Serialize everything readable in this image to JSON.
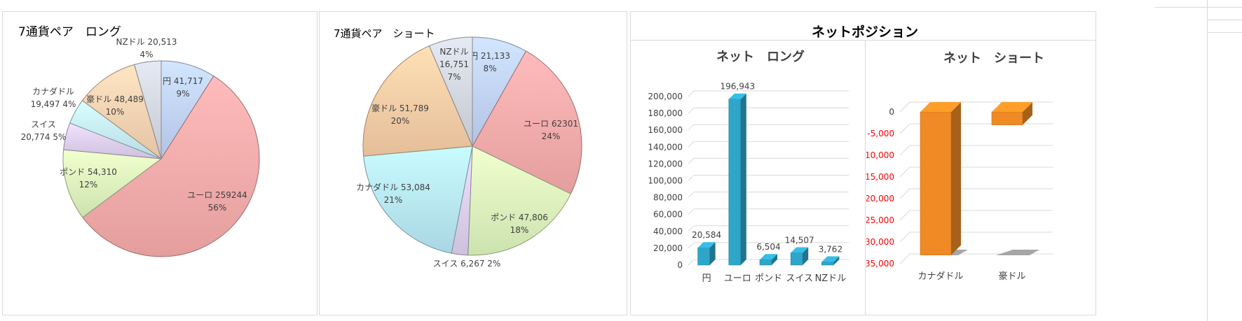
{
  "chart_data": [
    {
      "type": "pie",
      "title": "7通貨ペア　ロング",
      "slices": [
        {
          "name": "円",
          "value": 41717,
          "value_label": "41,717",
          "pct": "9%",
          "color": "#c6d9fd"
        },
        {
          "name": "ユーロ",
          "value": 259244,
          "value_label": "259244",
          "pct": "56%",
          "color": "#fdb0b0"
        },
        {
          "name": "ポンド",
          "value": 54310,
          "value_label": "54,310",
          "pct": "12%",
          "color": "#e3fcc2"
        },
        {
          "name": "スイス",
          "value": 20774,
          "value_label": "20,774",
          "pct": "5%",
          "color": "#e4d6f5"
        },
        {
          "name": "カナダドル",
          "value": 19497,
          "value_label": "19,497",
          "pct": "4%",
          "color": "#ccf3fd"
        },
        {
          "name": "豪ドル",
          "value": 48489,
          "value_label": "48,489",
          "pct": "10%",
          "color": "#fdd9b8"
        },
        {
          "name": "NZドル",
          "value": 20513,
          "value_label": "20,513",
          "pct": "4%",
          "color": "#d9dde6"
        }
      ]
    },
    {
      "type": "pie",
      "title": "7通貨ペア　ショート",
      "slices": [
        {
          "name": "円",
          "value": 21133,
          "value_label": "21,133",
          "pct": "8%",
          "color": "#c6d9fd"
        },
        {
          "name": "ユーロ",
          "value": 62301,
          "value_label": "62301",
          "pct": "24%",
          "color": "#fdb0b0"
        },
        {
          "name": "ポンド",
          "value": 47806,
          "value_label": "47,806",
          "pct": "18%",
          "color": "#e3fcc2"
        },
        {
          "name": "スイス",
          "value": 6267,
          "value_label": "6,267",
          "pct": "2%",
          "color": "#e4d6f5"
        },
        {
          "name": "カナダドル",
          "value": 53084,
          "value_label": "53,084",
          "pct": "21%",
          "color": "#bdeefc"
        },
        {
          "name": "豪ドル",
          "value": 51789,
          "value_label": "51,789",
          "pct": "20%",
          "color": "#fdd3ab"
        },
        {
          "name": "NZドル",
          "value": 16751,
          "value_label": "16,751",
          "pct": "7%",
          "color": "#d9dde6"
        }
      ]
    },
    {
      "type": "bar",
      "title": "ネット　ロング",
      "categories": [
        "円",
        "ユーロ",
        "ポンド",
        "スイス",
        "NZドル"
      ],
      "values": [
        20584,
        196943,
        6504,
        14507,
        3762
      ],
      "value_labels": [
        "20,584",
        "196,943",
        "6,504",
        "14,507",
        "3,762"
      ],
      "ylim": [
        0,
        200000
      ],
      "yticks": [
        "0",
        "20,000",
        "40,000",
        "60,000",
        "80,000",
        "100,000",
        "120,000",
        "140,000",
        "160,000",
        "180,000",
        "200,000"
      ],
      "color": "#2ea6c9"
    },
    {
      "type": "bar",
      "title": "ネット　ショート",
      "categories": [
        "カナダドル",
        "豪ドル"
      ],
      "values": [
        -33000,
        -3000
      ],
      "ylim": [
        -35000,
        0
      ],
      "yticks": [
        "0",
        "-5,000",
        "-10,000",
        "-15,000",
        "-20,000",
        "-25,000",
        "-30,000",
        "-35,000"
      ],
      "color": "#f08a24"
    }
  ],
  "header": {
    "title": "ネットポジション"
  }
}
